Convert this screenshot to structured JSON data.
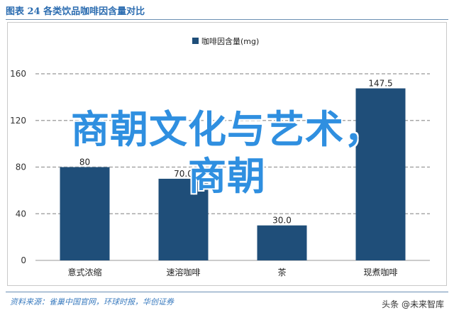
{
  "header": {
    "title": "图表 24   各类饮品咖啡因含量对比"
  },
  "chart_data": {
    "type": "bar",
    "categories": [
      "意式浓缩",
      "速溶咖啡",
      "茶",
      "现煮咖啡"
    ],
    "series": [
      {
        "name": "咖啡因含量(mg)",
        "values": [
          80.0,
          70.0,
          30.0,
          147.5
        ]
      }
    ],
    "data_labels": [
      "80",
      "70.0",
      "30.0",
      "147.5"
    ],
    "ylim": [
      0,
      160
    ],
    "yticks": [
      0,
      40,
      80,
      120,
      160
    ],
    "ytick_labels": [
      "0",
      "40",
      "80",
      "120",
      "160"
    ],
    "grid": true,
    "legend_position": "top",
    "bar_color": "#1f4e79"
  },
  "footer": {
    "source": "资料来源：雀巢中国官网，环球时报，华创证券",
    "watermark": "头条 @未来智库"
  },
  "overlay": {
    "line1": "商朝文化与艺术，",
    "line2": "商朝"
  }
}
